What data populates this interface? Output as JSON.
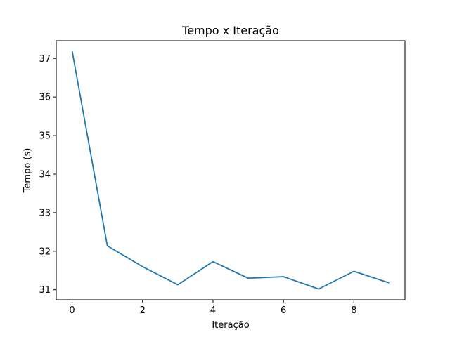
{
  "chart_data": {
    "type": "line",
    "title": "Tempo x Iteração",
    "xlabel": "Iteração",
    "ylabel": "Tempo (s)",
    "xlim": [
      -0.45,
      9.45
    ],
    "ylim": [
      30.74,
      37.46
    ],
    "xticks": [
      0,
      2,
      4,
      6,
      8
    ],
    "yticks": [
      31,
      32,
      33,
      34,
      35,
      36,
      37
    ],
    "grid": false,
    "series": [
      {
        "x": [
          0,
          1,
          2,
          3,
          4,
          5,
          6,
          7,
          8,
          9
        ],
        "y": [
          37.2,
          32.14,
          31.6,
          31.13,
          31.73,
          31.3,
          31.34,
          31.02,
          31.48,
          31.18
        ],
        "color": "#1f77b4"
      }
    ]
  }
}
